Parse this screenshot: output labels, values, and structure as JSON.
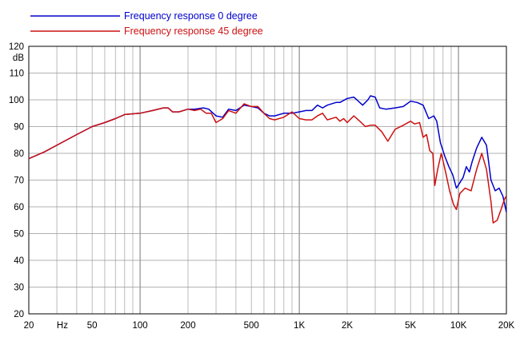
{
  "chart_data": {
    "type": "line",
    "title": "",
    "xlabel": "Hz",
    "ylabel": "dB",
    "x_scale": "log",
    "xlim": [
      20,
      20000
    ],
    "ylim": [
      20,
      120
    ],
    "grid": true,
    "legend_placement": "top-left",
    "x_tick_labels": [
      {
        "value": 20,
        "label": "20"
      },
      {
        "value": 50,
        "label": "50"
      },
      {
        "value": 100,
        "label": "100"
      },
      {
        "value": 200,
        "label": "200"
      },
      {
        "value": 500,
        "label": "500"
      },
      {
        "value": 1000,
        "label": "1K"
      },
      {
        "value": 2000,
        "label": "2K"
      },
      {
        "value": 5000,
        "label": "5K"
      },
      {
        "value": 10000,
        "label": "10K"
      },
      {
        "value": 20000,
        "label": "20K"
      }
    ],
    "y_ticks": [
      20,
      30,
      40,
      50,
      60,
      70,
      80,
      90,
      100,
      110,
      120
    ],
    "series": [
      {
        "name": "Frequency response 0 degree",
        "color": "#0000cc",
        "points": [
          [
            20,
            78
          ],
          [
            25,
            80.5
          ],
          [
            30,
            83
          ],
          [
            40,
            87
          ],
          [
            50,
            90
          ],
          [
            60,
            91.5
          ],
          [
            70,
            93
          ],
          [
            80,
            94.5
          ],
          [
            100,
            95
          ],
          [
            120,
            96
          ],
          [
            140,
            97
          ],
          [
            150,
            97
          ],
          [
            160,
            95.5
          ],
          [
            175,
            95.5
          ],
          [
            200,
            96.5
          ],
          [
            220,
            96.5
          ],
          [
            250,
            97
          ],
          [
            270,
            96.5
          ],
          [
            300,
            94
          ],
          [
            330,
            93.5
          ],
          [
            360,
            96.5
          ],
          [
            400,
            96
          ],
          [
            450,
            98
          ],
          [
            500,
            97.5
          ],
          [
            550,
            97
          ],
          [
            600,
            95
          ],
          [
            650,
            94
          ],
          [
            700,
            94
          ],
          [
            800,
            95
          ],
          [
            900,
            95
          ],
          [
            1000,
            95.5
          ],
          [
            1100,
            96
          ],
          [
            1200,
            96
          ],
          [
            1300,
            98
          ],
          [
            1400,
            97
          ],
          [
            1500,
            98
          ],
          [
            1700,
            99
          ],
          [
            1800,
            99
          ],
          [
            2000,
            100.5
          ],
          [
            2200,
            101
          ],
          [
            2300,
            100
          ],
          [
            2500,
            98
          ],
          [
            2700,
            100
          ],
          [
            2800,
            101.5
          ],
          [
            3000,
            101
          ],
          [
            3200,
            97
          ],
          [
            3500,
            96.5
          ],
          [
            4000,
            97
          ],
          [
            4500,
            97.5
          ],
          [
            5000,
            99.5
          ],
          [
            5500,
            99
          ],
          [
            6000,
            98
          ],
          [
            6500,
            93
          ],
          [
            7000,
            94
          ],
          [
            7300,
            92
          ],
          [
            7700,
            84
          ],
          [
            8200,
            79
          ],
          [
            8700,
            75
          ],
          [
            9200,
            72
          ],
          [
            9700,
            67
          ],
          [
            10200,
            69
          ],
          [
            10700,
            71
          ],
          [
            11200,
            75
          ],
          [
            11700,
            73
          ],
          [
            12200,
            77
          ],
          [
            13000,
            82
          ],
          [
            14000,
            86
          ],
          [
            15000,
            83
          ],
          [
            16000,
            70
          ],
          [
            17000,
            66
          ],
          [
            18000,
            67
          ],
          [
            19000,
            64
          ],
          [
            20000,
            58
          ]
        ]
      },
      {
        "name": "Frequency response 45 degree",
        "color": "#cc1111",
        "points": [
          [
            20,
            78
          ],
          [
            25,
            80.5
          ],
          [
            30,
            83
          ],
          [
            40,
            87
          ],
          [
            50,
            90
          ],
          [
            60,
            91.5
          ],
          [
            70,
            93
          ],
          [
            80,
            94.5
          ],
          [
            100,
            95
          ],
          [
            120,
            96
          ],
          [
            140,
            97
          ],
          [
            150,
            97
          ],
          [
            160,
            95.5
          ],
          [
            175,
            95.5
          ],
          [
            200,
            96.5
          ],
          [
            220,
            96
          ],
          [
            240,
            96.5
          ],
          [
            260,
            95
          ],
          [
            280,
            95
          ],
          [
            300,
            91.5
          ],
          [
            330,
            93
          ],
          [
            360,
            96
          ],
          [
            400,
            95
          ],
          [
            450,
            98.5
          ],
          [
            500,
            97.5
          ],
          [
            550,
            97.5
          ],
          [
            600,
            95
          ],
          [
            650,
            93
          ],
          [
            700,
            92.5
          ],
          [
            800,
            93.5
          ],
          [
            900,
            95.5
          ],
          [
            1000,
            93
          ],
          [
            1100,
            92.5
          ],
          [
            1200,
            92.5
          ],
          [
            1300,
            94
          ],
          [
            1400,
            95
          ],
          [
            1500,
            92.5
          ],
          [
            1700,
            93.5
          ],
          [
            1800,
            92
          ],
          [
            1900,
            93
          ],
          [
            2000,
            91.5
          ],
          [
            2200,
            94
          ],
          [
            2400,
            92
          ],
          [
            2600,
            90
          ],
          [
            2800,
            90.5
          ],
          [
            3000,
            90.5
          ],
          [
            3300,
            88
          ],
          [
            3600,
            84.5
          ],
          [
            4000,
            89
          ],
          [
            4500,
            90.5
          ],
          [
            5000,
            92
          ],
          [
            5300,
            91
          ],
          [
            5700,
            91.5
          ],
          [
            6000,
            86
          ],
          [
            6300,
            87
          ],
          [
            6600,
            81
          ],
          [
            6900,
            80
          ],
          [
            7100,
            68
          ],
          [
            7400,
            74
          ],
          [
            7800,
            80
          ],
          [
            8300,
            73
          ],
          [
            8800,
            66
          ],
          [
            9300,
            61
          ],
          [
            9700,
            59
          ],
          [
            10200,
            65
          ],
          [
            11000,
            67
          ],
          [
            12000,
            66
          ],
          [
            13000,
            74
          ],
          [
            14000,
            80
          ],
          [
            15000,
            74
          ],
          [
            16000,
            62
          ],
          [
            16500,
            54
          ],
          [
            17500,
            55
          ],
          [
            18500,
            59
          ],
          [
            19500,
            63
          ],
          [
            20000,
            64
          ]
        ]
      }
    ]
  }
}
